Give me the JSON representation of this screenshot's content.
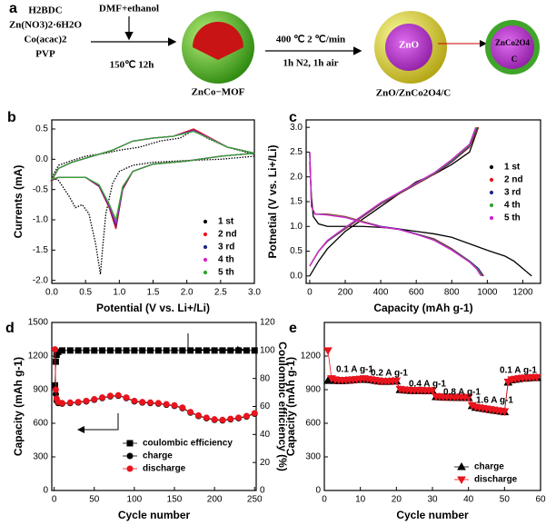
{
  "scheme": {
    "panel": "a",
    "precursors": [
      "H2BDC",
      "Zn(NO3)2·6H2O",
      "Co(acac)2",
      "PVP"
    ],
    "solvent": "DMF+ethanol",
    "step1": "150℃ 12h",
    "intermediate": "ZnCo−MOF",
    "step2_top": "400 ℃ 2 ℃/min",
    "step2_bottom": "1h N2, 1h air",
    "product": "ZnO/ZnCo2O4/C",
    "core_label": "ZnO",
    "inset_labels": [
      "ZnCo2O4",
      "C"
    ]
  },
  "chart_data": [
    {
      "type": "line",
      "panel": "b",
      "x_label": "Potential (V vs. Li+/Li)",
      "y_label": "Currents (mA)",
      "xlim": [
        0,
        3.0
      ],
      "xticks": [
        {
          "value": 0,
          "label": "0.0"
        },
        0.5,
        {
          "value": 1,
          "label": "1.0"
        },
        1.5,
        {
          "value": 2,
          "label": "2.0"
        },
        2.5,
        {
          "value": 3,
          "label": "3.0"
        }
      ],
      "ylim": [
        -2.05,
        0.65
      ],
      "yticks": [
        0.5,
        {
          "value": 0,
          "label": "0.0"
        },
        -0.5,
        {
          "value": -1,
          "label": "-1.0"
        },
        -1.5,
        {
          "value": -2,
          "label": "-2.0"
        }
      ],
      "legend": "lower right",
      "series": [
        {
          "name": "1 st",
          "color": "#000000",
          "dash": true,
          "x": [
            3.0,
            2.5,
            2.0,
            1.5,
            1.2,
            1.0,
            0.9,
            0.8,
            0.75,
            0.72,
            0.65,
            0.55,
            0.45,
            0.35,
            0.25,
            0.1,
            0.0,
            0.1,
            0.3,
            0.5,
            0.8,
            1.0,
            1.3,
            1.6,
            1.9,
            2.1,
            2.3,
            2.6,
            3.0
          ],
          "values": [
            0.05,
            0.0,
            -0.02,
            -0.05,
            -0.1,
            -0.2,
            -0.4,
            -0.9,
            -1.5,
            -1.9,
            -1.4,
            -0.9,
            -0.75,
            -0.8,
            -0.6,
            -0.35,
            -0.3,
            -0.1,
            -0.02,
            0.05,
            0.1,
            0.15,
            0.2,
            0.3,
            0.35,
            0.48,
            0.35,
            0.2,
            0.08
          ]
        },
        {
          "name": "2 nd",
          "color": "#e8141e",
          "x": [
            3.0,
            2.5,
            2.0,
            1.5,
            1.2,
            1.05,
            0.95,
            0.85,
            0.7,
            0.5,
            0.3,
            0.1,
            0.0,
            0.1,
            0.3,
            0.6,
            0.9,
            1.2,
            1.5,
            1.8,
            2.1,
            2.3,
            2.6,
            3.0
          ],
          "values": [
            0.1,
            0.05,
            -0.03,
            -0.08,
            -0.2,
            -0.5,
            -1.15,
            -0.8,
            -0.45,
            -0.3,
            -0.3,
            -0.3,
            -0.35,
            -0.15,
            -0.05,
            0.05,
            0.15,
            0.3,
            0.35,
            0.38,
            0.5,
            0.38,
            0.2,
            0.1
          ]
        },
        {
          "name": "3 rd",
          "color": "#1f2a8c",
          "x": [
            3.0,
            2.5,
            2.0,
            1.5,
            1.2,
            1.05,
            0.95,
            0.85,
            0.7,
            0.5,
            0.3,
            0.1,
            0.0,
            0.1,
            0.3,
            0.6,
            0.9,
            1.2,
            1.5,
            1.8,
            2.1,
            2.3,
            2.6,
            3.0
          ],
          "values": [
            0.1,
            0.05,
            -0.03,
            -0.08,
            -0.2,
            -0.48,
            -1.1,
            -0.78,
            -0.44,
            -0.3,
            -0.3,
            -0.3,
            -0.34,
            -0.15,
            -0.05,
            0.05,
            0.15,
            0.3,
            0.35,
            0.38,
            0.48,
            0.37,
            0.2,
            0.1
          ]
        },
        {
          "name": "4 th",
          "color": "#d51fd0",
          "x": [
            3.0,
            2.5,
            2.0,
            1.5,
            1.2,
            1.05,
            0.95,
            0.85,
            0.7,
            0.5,
            0.3,
            0.1,
            0.0,
            0.1,
            0.3,
            0.6,
            0.9,
            1.2,
            1.5,
            1.8,
            2.1,
            2.3,
            2.6,
            3.0
          ],
          "values": [
            0.1,
            0.05,
            -0.03,
            -0.08,
            -0.2,
            -0.46,
            -1.05,
            -0.76,
            -0.43,
            -0.3,
            -0.3,
            -0.3,
            -0.33,
            -0.15,
            -0.05,
            0.05,
            0.15,
            0.3,
            0.35,
            0.38,
            0.47,
            0.37,
            0.2,
            0.1
          ]
        },
        {
          "name": "5 th",
          "color": "#2ea52e",
          "x": [
            3.0,
            2.5,
            2.0,
            1.5,
            1.2,
            1.05,
            0.95,
            0.85,
            0.7,
            0.5,
            0.3,
            0.1,
            0.0,
            0.1,
            0.3,
            0.6,
            0.9,
            1.2,
            1.5,
            1.8,
            2.1,
            2.3,
            2.6,
            3.0
          ],
          "values": [
            0.1,
            0.05,
            -0.03,
            -0.08,
            -0.2,
            -0.45,
            -1.0,
            -0.74,
            -0.42,
            -0.3,
            -0.3,
            -0.3,
            -0.33,
            -0.15,
            -0.05,
            0.05,
            0.15,
            0.3,
            0.35,
            0.38,
            0.46,
            0.36,
            0.2,
            0.1
          ]
        }
      ]
    },
    {
      "type": "line",
      "panel": "c",
      "x_label": "Capacity (mAh g-1)",
      "y_label": "Potnetial (V vs. Li+/Li)",
      "xlim": [
        -20,
        1300
      ],
      "xticks": [
        0,
        200,
        400,
        600,
        800,
        1000,
        1200
      ],
      "ylim": [
        -0.15,
        3.15
      ],
      "yticks": [
        {
          "value": 0,
          "label": "0.0"
        },
        0.5,
        {
          "value": 1,
          "label": "1.0"
        },
        1.5,
        {
          "value": 2,
          "label": "2.0"
        },
        2.5,
        {
          "value": 3,
          "label": "3.0"
        }
      ],
      "legend": "right",
      "series": [
        {
          "name": "1 st",
          "color": "#000000",
          "x": [
            0,
            10,
            20,
            50,
            100,
            200,
            300,
            400,
            500,
            600,
            700,
            800,
            900,
            1000,
            1100,
            1150,
            1200,
            1250,
            null,
            0,
            50,
            100,
            200,
            300,
            400,
            500,
            600,
            700,
            800,
            900,
            950
          ],
          "values": [
            2.3,
            1.6,
            1.2,
            1.05,
            1.0,
            1.0,
            1.0,
            0.98,
            0.95,
            0.9,
            0.85,
            0.78,
            0.65,
            0.52,
            0.4,
            0.3,
            0.15,
            0.0,
            null,
            0.0,
            0.3,
            0.55,
            0.9,
            1.15,
            1.4,
            1.65,
            1.9,
            2.05,
            2.25,
            2.5,
            3.0
          ]
        },
        {
          "name": "2 nd",
          "color": "#e8141e",
          "x": [
            0,
            10,
            30,
            100,
            200,
            300,
            400,
            500,
            600,
            700,
            800,
            900,
            950,
            980,
            null,
            0,
            50,
            100,
            200,
            300,
            400,
            500,
            600,
            700,
            800,
            900,
            950
          ],
          "values": [
            2.5,
            1.4,
            1.25,
            1.25,
            1.2,
            1.1,
            1.0,
            0.95,
            0.85,
            0.75,
            0.55,
            0.3,
            0.15,
            0.0,
            null,
            0.2,
            0.5,
            0.7,
            0.95,
            1.2,
            1.45,
            1.65,
            1.85,
            2.05,
            2.3,
            2.6,
            3.0
          ]
        },
        {
          "name": "3 rd",
          "color": "#1f2a8c",
          "x": [
            0,
            10,
            30,
            100,
            200,
            300,
            400,
            500,
            600,
            700,
            800,
            900,
            950,
            975,
            null,
            0,
            50,
            100,
            200,
            300,
            400,
            500,
            600,
            700,
            800,
            900,
            945
          ],
          "values": [
            2.5,
            1.4,
            1.25,
            1.24,
            1.19,
            1.09,
            1.0,
            0.95,
            0.85,
            0.74,
            0.54,
            0.3,
            0.15,
            0.0,
            null,
            0.2,
            0.5,
            0.7,
            0.96,
            1.21,
            1.46,
            1.66,
            1.86,
            2.06,
            2.31,
            2.62,
            3.0
          ]
        },
        {
          "name": "4 th",
          "color": "#2ea52e",
          "x": [
            0,
            10,
            30,
            100,
            200,
            300,
            400,
            500,
            600,
            700,
            800,
            900,
            945,
            970,
            null,
            0,
            50,
            100,
            200,
            300,
            400,
            500,
            600,
            700,
            800,
            900,
            940
          ],
          "values": [
            2.5,
            1.4,
            1.25,
            1.24,
            1.19,
            1.09,
            0.99,
            0.94,
            0.84,
            0.73,
            0.53,
            0.29,
            0.14,
            0.0,
            null,
            0.2,
            0.5,
            0.71,
            0.97,
            1.22,
            1.47,
            1.67,
            1.87,
            2.07,
            2.33,
            2.64,
            3.0
          ]
        },
        {
          "name": "5 th",
          "color": "#d51fd0",
          "x": [
            0,
            10,
            30,
            100,
            200,
            300,
            400,
            500,
            600,
            700,
            800,
            900,
            940,
            965,
            null,
            0,
            50,
            100,
            200,
            300,
            400,
            500,
            600,
            700,
            800,
            900,
            935
          ],
          "values": [
            2.5,
            1.4,
            1.25,
            1.23,
            1.18,
            1.08,
            0.99,
            0.94,
            0.84,
            0.72,
            0.52,
            0.28,
            0.14,
            0.0,
            null,
            0.2,
            0.5,
            0.72,
            0.98,
            1.23,
            1.48,
            1.68,
            1.88,
            2.08,
            2.35,
            2.66,
            3.0
          ]
        }
      ]
    },
    {
      "type": "line",
      "panel": "d",
      "x_label": "Cycle number",
      "y_label": "Capacity (mAh g-1)",
      "y2_label": "Coulombic efficiency (%)",
      "xlim": [
        -3,
        252
      ],
      "xticks": [
        0,
        50,
        100,
        150,
        200,
        250
      ],
      "ylim": [
        0,
        1500
      ],
      "yticks": [
        0,
        300,
        600,
        900,
        1200,
        1500
      ],
      "y2lim": [
        0,
        120
      ],
      "y2ticks": [
        0,
        20,
        40,
        60,
        80,
        100,
        120
      ],
      "legend": "lower left",
      "x": [
        1,
        2,
        3,
        5,
        10,
        20,
        30,
        40,
        50,
        60,
        70,
        80,
        90,
        100,
        110,
        120,
        130,
        140,
        150,
        160,
        170,
        180,
        190,
        200,
        210,
        220,
        230,
        240,
        250
      ],
      "series": [
        {
          "name": "coulombic efficiency",
          "color": "#000000",
          "marker": "square",
          "axis": "y2",
          "values": [
            75,
            92,
            97,
            99,
            100,
            100,
            100,
            100,
            100,
            100,
            100,
            100,
            100,
            100,
            100,
            100,
            100,
            100,
            100,
            100,
            100,
            100,
            100,
            100,
            100,
            100,
            100,
            100,
            100
          ]
        },
        {
          "name": "charge",
          "color": "#000000",
          "marker": "circle",
          "values": [
            930,
            860,
            800,
            780,
            775,
            780,
            785,
            795,
            810,
            825,
            840,
            845,
            825,
            795,
            785,
            780,
            775,
            765,
            755,
            735,
            695,
            665,
            645,
            630,
            625,
            635,
            645,
            660,
            685
          ]
        },
        {
          "name": "discharge",
          "color": "#e8141e",
          "marker": "circle",
          "values": [
            1260,
            900,
            820,
            790,
            780,
            785,
            790,
            800,
            815,
            830,
            845,
            850,
            830,
            800,
            790,
            785,
            780,
            770,
            760,
            740,
            700,
            670,
            650,
            635,
            630,
            640,
            650,
            665,
            690
          ]
        }
      ]
    },
    {
      "type": "line",
      "panel": "e",
      "x_label": "Cycle number",
      "y_label": "Capacity (mAh g-1)",
      "xlim": [
        0,
        60
      ],
      "xticks": [
        0,
        10,
        20,
        30,
        40,
        50,
        60
      ],
      "ylim": [
        0,
        1500
      ],
      "yticks": [
        0,
        300,
        600,
        900,
        1200
      ],
      "legend": "lower right",
      "annotations": [
        "0.1 A g-1",
        "0.2 A g-1",
        "0.4 A g-1",
        "0.8 A g-1",
        "1.6 A g-1",
        "0.1 A g-1"
      ],
      "x": [
        1,
        2,
        3,
        4,
        5,
        6,
        7,
        8,
        9,
        10,
        11,
        12,
        13,
        14,
        15,
        16,
        17,
        18,
        19,
        20,
        21,
        22,
        23,
        24,
        25,
        26,
        27,
        28,
        29,
        30,
        31,
        32,
        33,
        34,
        35,
        36,
        37,
        38,
        39,
        40,
        41,
        42,
        43,
        44,
        45,
        46,
        47,
        48,
        49,
        50,
        51,
        52,
        53,
        54,
        55,
        56,
        57,
        58,
        59
      ],
      "series": [
        {
          "name": "charge",
          "color": "#000000",
          "marker": "triangle-up",
          "values": [
            980,
            985,
            980,
            978,
            978,
            980,
            982,
            985,
            988,
            990,
            990,
            988,
            985,
            980,
            975,
            972,
            972,
            972,
            975,
            975,
            898,
            895,
            893,
            890,
            890,
            890,
            890,
            888,
            888,
            888,
            835,
            833,
            831,
            830,
            830,
            829,
            829,
            828,
            828,
            827,
            755,
            740,
            735,
            730,
            725,
            720,
            715,
            710,
            705,
            700,
            965,
            985,
            990,
            995,
            1000,
            1000,
            1003,
            1005,
            1005
          ]
        },
        {
          "name": "discharge",
          "color": "#e8141e",
          "marker": "triangle-down",
          "values": [
            1250,
            1000,
            990,
            985,
            985,
            985,
            988,
            990,
            992,
            995,
            1000,
            995,
            990,
            985,
            980,
            975,
            975,
            975,
            978,
            980,
            905,
            900,
            898,
            895,
            895,
            895,
            895,
            893,
            893,
            893,
            840,
            838,
            836,
            835,
            835,
            834,
            834,
            833,
            833,
            832,
            760,
            745,
            740,
            735,
            730,
            725,
            720,
            715,
            710,
            705,
            970,
            990,
            995,
            1000,
            1005,
            1005,
            1008,
            1010,
            1010
          ]
        }
      ]
    }
  ]
}
